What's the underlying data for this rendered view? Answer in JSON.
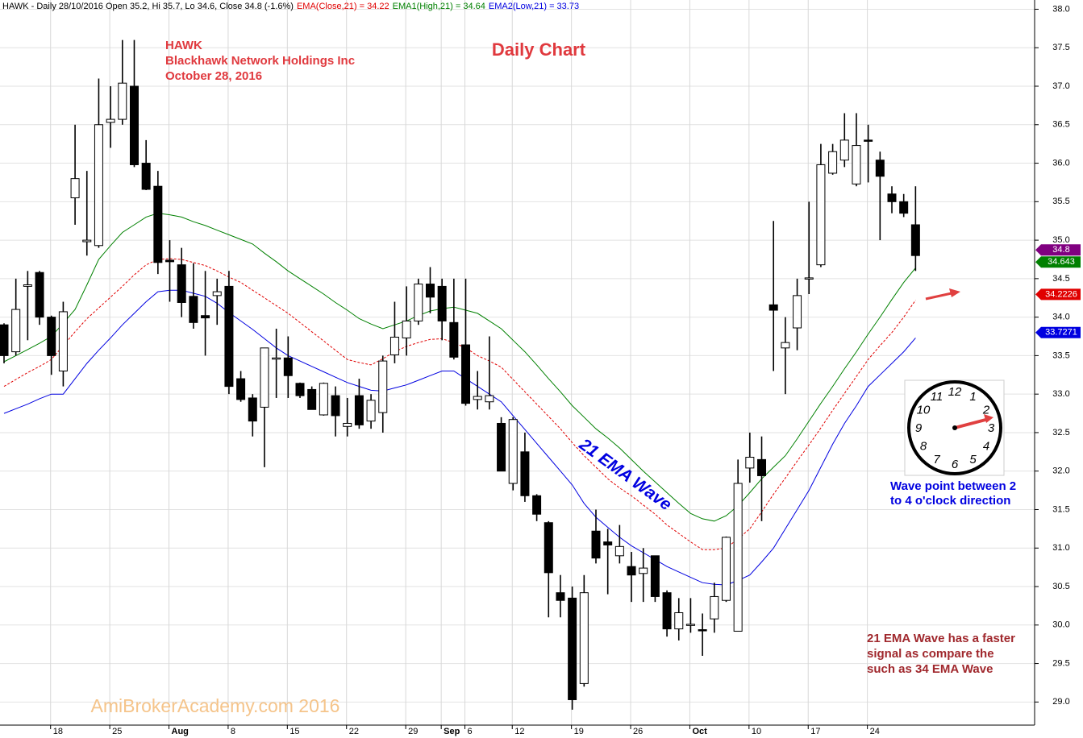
{
  "chart_data": {
    "type": "candlestick",
    "header": "HAWK - Daily 28/10/2016 Open 35.2, Hi 35.7, Lo 34.6, Close 34.8 (-1.6%)",
    "title": "Daily Chart",
    "subtitle_lines": [
      "HAWK",
      "Blackhawk Network Holdings Inc",
      "October 28, 2016"
    ],
    "categories": [
      null,
      null,
      null,
      null,
      "18",
      null,
      null,
      null,
      null,
      "25",
      null,
      null,
      null,
      null,
      "Aug",
      null,
      null,
      null,
      null,
      "8",
      null,
      null,
      null,
      null,
      "15",
      null,
      null,
      null,
      null,
      "22",
      null,
      null,
      null,
      null,
      "29",
      null,
      null,
      "Sep",
      null,
      "6",
      null,
      null,
      null,
      "12",
      null,
      null,
      null,
      null,
      "19",
      null,
      null,
      null,
      null,
      "26",
      null,
      null,
      null,
      null,
      "Oct",
      null,
      null,
      null,
      null,
      "10",
      null,
      null,
      null,
      null,
      "17",
      null,
      null,
      null,
      null,
      "24",
      null,
      null,
      null,
      null
    ],
    "open": [
      33.9,
      33.55,
      34.4,
      34.58,
      34.0,
      33.3,
      35.55,
      34.98,
      34.93,
      36.53,
      36.57,
      37.0,
      36.0,
      35.7,
      34.74,
      34.68,
      34.27,
      34.02,
      34.28,
      34.4,
      33.2,
      32.95,
      32.83,
      33.46,
      33.47,
      33.14,
      33.06,
      32.73,
      32.98,
      32.58,
      32.98,
      32.65,
      32.76,
      33.51,
      33.73,
      33.95,
      34.43,
      34.4,
      33.93,
      33.64,
      32.93,
      32.9,
      32.62,
      31.84,
      32.25,
      31.68,
      31.33,
      30.42,
      30.35,
      29.24,
      31.22,
      31.08,
      30.9,
      30.76,
      30.67,
      30.9,
      30.42,
      29.95,
      30.0,
      29.94,
      30.08,
      30.32,
      29.92,
      32.04,
      32.15,
      34.16,
      33.6,
      33.86,
      34.5,
      34.68,
      35.87,
      36.04,
      35.73,
      36.3,
      36.04,
      35.6,
      35.5,
      35.2
    ],
    "high": [
      33.92,
      34.5,
      34.6,
      34.6,
      34.02,
      34.2,
      36.5,
      35.9,
      37.1,
      37.0,
      37.6,
      37.6,
      36.3,
      35.9,
      35.0,
      34.9,
      34.7,
      34.6,
      34.5,
      34.6,
      33.3,
      33.0,
      33.6,
      33.85,
      33.75,
      33.15,
      33.1,
      33.15,
      33.1,
      32.95,
      33.2,
      33.0,
      33.5,
      34.2,
      34.4,
      34.5,
      34.65,
      34.5,
      34.5,
      34.5,
      33.3,
      33.75,
      32.7,
      32.7,
      32.5,
      31.7,
      31.35,
      30.65,
      30.5,
      30.65,
      31.5,
      31.25,
      31.3,
      30.95,
      31.0,
      30.9,
      30.45,
      30.35,
      30.35,
      30.15,
      30.55,
      31.15,
      32.15,
      32.5,
      32.45,
      35.25,
      34.0,
      34.5,
      35.5,
      36.25,
      36.25,
      36.65,
      36.65,
      36.5,
      36.15,
      35.7,
      35.6,
      35.7
    ],
    "low": [
      33.4,
      33.5,
      33.7,
      33.9,
      33.25,
      33.1,
      35.2,
      34.8,
      34.9,
      36.2,
      36.5,
      35.95,
      35.65,
      34.56,
      34.2,
      34.0,
      33.85,
      33.5,
      33.9,
      33.0,
      32.9,
      32.45,
      32.05,
      32.95,
      32.95,
      32.95,
      32.8,
      32.72,
      32.45,
      32.45,
      32.55,
      32.55,
      32.5,
      33.4,
      33.5,
      33.9,
      34.05,
      33.7,
      33.45,
      32.85,
      32.8,
      32.8,
      32.0,
      31.75,
      31.6,
      31.35,
      30.1,
      30.1,
      28.9,
      29.2,
      30.8,
      30.4,
      30.8,
      30.3,
      30.3,
      30.3,
      29.85,
      29.8,
      29.9,
      29.6,
      29.9,
      30.3,
      29.92,
      31.85,
      31.35,
      33.3,
      33.0,
      33.57,
      34.3,
      34.65,
      35.85,
      35.95,
      35.7,
      35.75,
      35.0,
      35.35,
      35.3,
      34.6
    ],
    "close": [
      33.5,
      34.1,
      34.42,
      34.0,
      33.5,
      34.07,
      35.8,
      35.0,
      36.5,
      36.57,
      37.04,
      35.98,
      35.66,
      34.71,
      34.72,
      34.19,
      33.93,
      33.99,
      34.33,
      33.1,
      32.93,
      32.65,
      33.6,
      33.47,
      33.24,
      32.98,
      32.8,
      33.14,
      32.72,
      32.62,
      32.6,
      32.92,
      33.43,
      33.74,
      33.95,
      34.43,
      34.26,
      33.95,
      33.48,
      32.88,
      32.97,
      32.98,
      32.0,
      32.67,
      31.68,
      31.44,
      30.68,
      30.32,
      29.03,
      30.42,
      30.87,
      31.04,
      31.02,
      30.65,
      30.74,
      30.37,
      29.95,
      30.16,
      30.01,
      29.93,
      30.37,
      31.14,
      31.84,
      32.18,
      31.94,
      34.09,
      33.67,
      34.28,
      34.51,
      35.98,
      36.15,
      36.3,
      36.23,
      36.29,
      35.83,
      35.5,
      35.35,
      34.8
    ],
    "series": [
      {
        "name": "EMA(Close,21) = 34.22",
        "color": "#e00000",
        "dashed": true,
        "values": [
          33.1,
          33.19,
          33.28,
          33.36,
          33.45,
          33.63,
          33.81,
          33.98,
          34.12,
          34.26,
          34.4,
          34.55,
          34.68,
          34.75,
          34.76,
          34.75,
          34.71,
          34.67,
          34.6,
          34.52,
          34.45,
          34.35,
          34.25,
          34.15,
          34.05,
          33.93,
          33.81,
          33.69,
          33.57,
          33.45,
          33.41,
          33.38,
          33.46,
          33.55,
          33.62,
          33.67,
          33.71,
          33.72,
          33.67,
          33.6,
          33.5,
          33.43,
          33.35,
          33.19,
          33.03,
          32.87,
          32.71,
          32.55,
          32.37,
          32.2,
          32.05,
          31.9,
          31.78,
          31.68,
          31.56,
          31.44,
          31.3,
          31.19,
          31.08,
          30.98,
          30.98,
          31.0,
          31.12,
          31.25,
          31.47,
          31.7,
          31.91,
          32.13,
          32.34,
          32.56,
          32.79,
          33.01,
          33.23,
          33.45,
          33.63,
          33.8,
          34.0,
          34.22
        ]
      },
      {
        "name": "EMA1(High,21) = 34.64",
        "color": "#008000",
        "dashed": false,
        "values": [
          33.42,
          33.5,
          33.58,
          33.66,
          33.75,
          33.92,
          34.1,
          34.42,
          34.75,
          34.93,
          35.1,
          35.2,
          35.3,
          35.35,
          35.33,
          35.3,
          35.24,
          35.19,
          35.13,
          35.07,
          35.01,
          34.95,
          34.83,
          34.72,
          34.6,
          34.5,
          34.4,
          34.3,
          34.19,
          34.09,
          33.98,
          33.91,
          33.85,
          33.9,
          33.95,
          34.02,
          34.08,
          34.11,
          34.13,
          34.09,
          34.05,
          33.95,
          33.85,
          33.7,
          33.55,
          33.38,
          33.2,
          33.03,
          32.85,
          32.7,
          32.55,
          32.43,
          32.3,
          32.15,
          32.0,
          31.86,
          31.72,
          31.58,
          31.45,
          31.38,
          31.35,
          31.42,
          31.55,
          31.72,
          31.9,
          32.05,
          32.2,
          32.42,
          32.65,
          32.88,
          33.1,
          33.33,
          33.55,
          33.78,
          34.0,
          34.23,
          34.45,
          34.64
        ]
      },
      {
        "name": "EMA2(Low,21) = 33.73",
        "color": "#0000e0",
        "dashed": false,
        "values": [
          32.75,
          32.81,
          32.87,
          32.94,
          33.0,
          33.0,
          33.2,
          33.4,
          33.57,
          33.73,
          33.9,
          34.05,
          34.2,
          34.33,
          34.35,
          34.35,
          34.31,
          34.27,
          34.18,
          34.06,
          33.95,
          33.84,
          33.72,
          33.6,
          33.5,
          33.43,
          33.36,
          33.29,
          33.22,
          33.15,
          33.1,
          33.05,
          33.04,
          33.08,
          33.12,
          33.18,
          33.24,
          33.3,
          33.3,
          33.2,
          33.1,
          33.0,
          32.9,
          32.72,
          32.54,
          32.36,
          32.18,
          32.0,
          31.82,
          31.58,
          31.4,
          31.27,
          31.14,
          31.03,
          30.94,
          30.85,
          30.76,
          30.69,
          30.62,
          30.55,
          30.53,
          30.52,
          30.58,
          30.65,
          30.82,
          31.0,
          31.25,
          31.5,
          31.75,
          32.05,
          32.35,
          32.62,
          32.85,
          33.1,
          33.25,
          33.4,
          33.55,
          33.73
        ]
      }
    ],
    "price_tags": [
      {
        "value": 34.8,
        "color": "#800080"
      },
      {
        "value": 34.643,
        "color": "#008000"
      },
      {
        "value": 34.2226,
        "color": "#e00000"
      },
      {
        "value": 33.7271,
        "color": "#0000e0"
      }
    ],
    "ylim": [
      28.7,
      38.12
    ],
    "yticks": [
      {
        "value": 29,
        "label": "29.0"
      },
      29.5,
      {
        "value": 30,
        "label": "30.0"
      },
      30.5,
      {
        "value": 31,
        "label": "31.0"
      },
      31.5,
      {
        "value": 32,
        "label": "32.0"
      },
      32.5,
      {
        "value": 33,
        "label": "33.0"
      },
      33.5,
      {
        "value": 34,
        "label": "34.0"
      },
      34.5,
      {
        "value": 35,
        "label": "35.0"
      },
      35.5,
      {
        "value": 36,
        "label": "36.0"
      },
      36.5,
      {
        "value": 37,
        "label": "37.0"
      },
      37.5,
      {
        "value": 38,
        "label": "38.0"
      }
    ],
    "grid": true,
    "wave_label": "21 EMA Wave",
    "clock_note": [
      "Wave point between 2",
      "to 4 o'clock direction"
    ],
    "ema_note": [
      "21 EMA Wave has a faster",
      "signal as compare the",
      "such as 34 EMA Wave"
    ],
    "watermark": "AmiBrokerAcademy.com  2016",
    "clock_numbers": [
      12,
      1,
      2,
      3,
      4,
      5,
      6,
      7,
      8,
      9,
      10,
      11
    ]
  }
}
